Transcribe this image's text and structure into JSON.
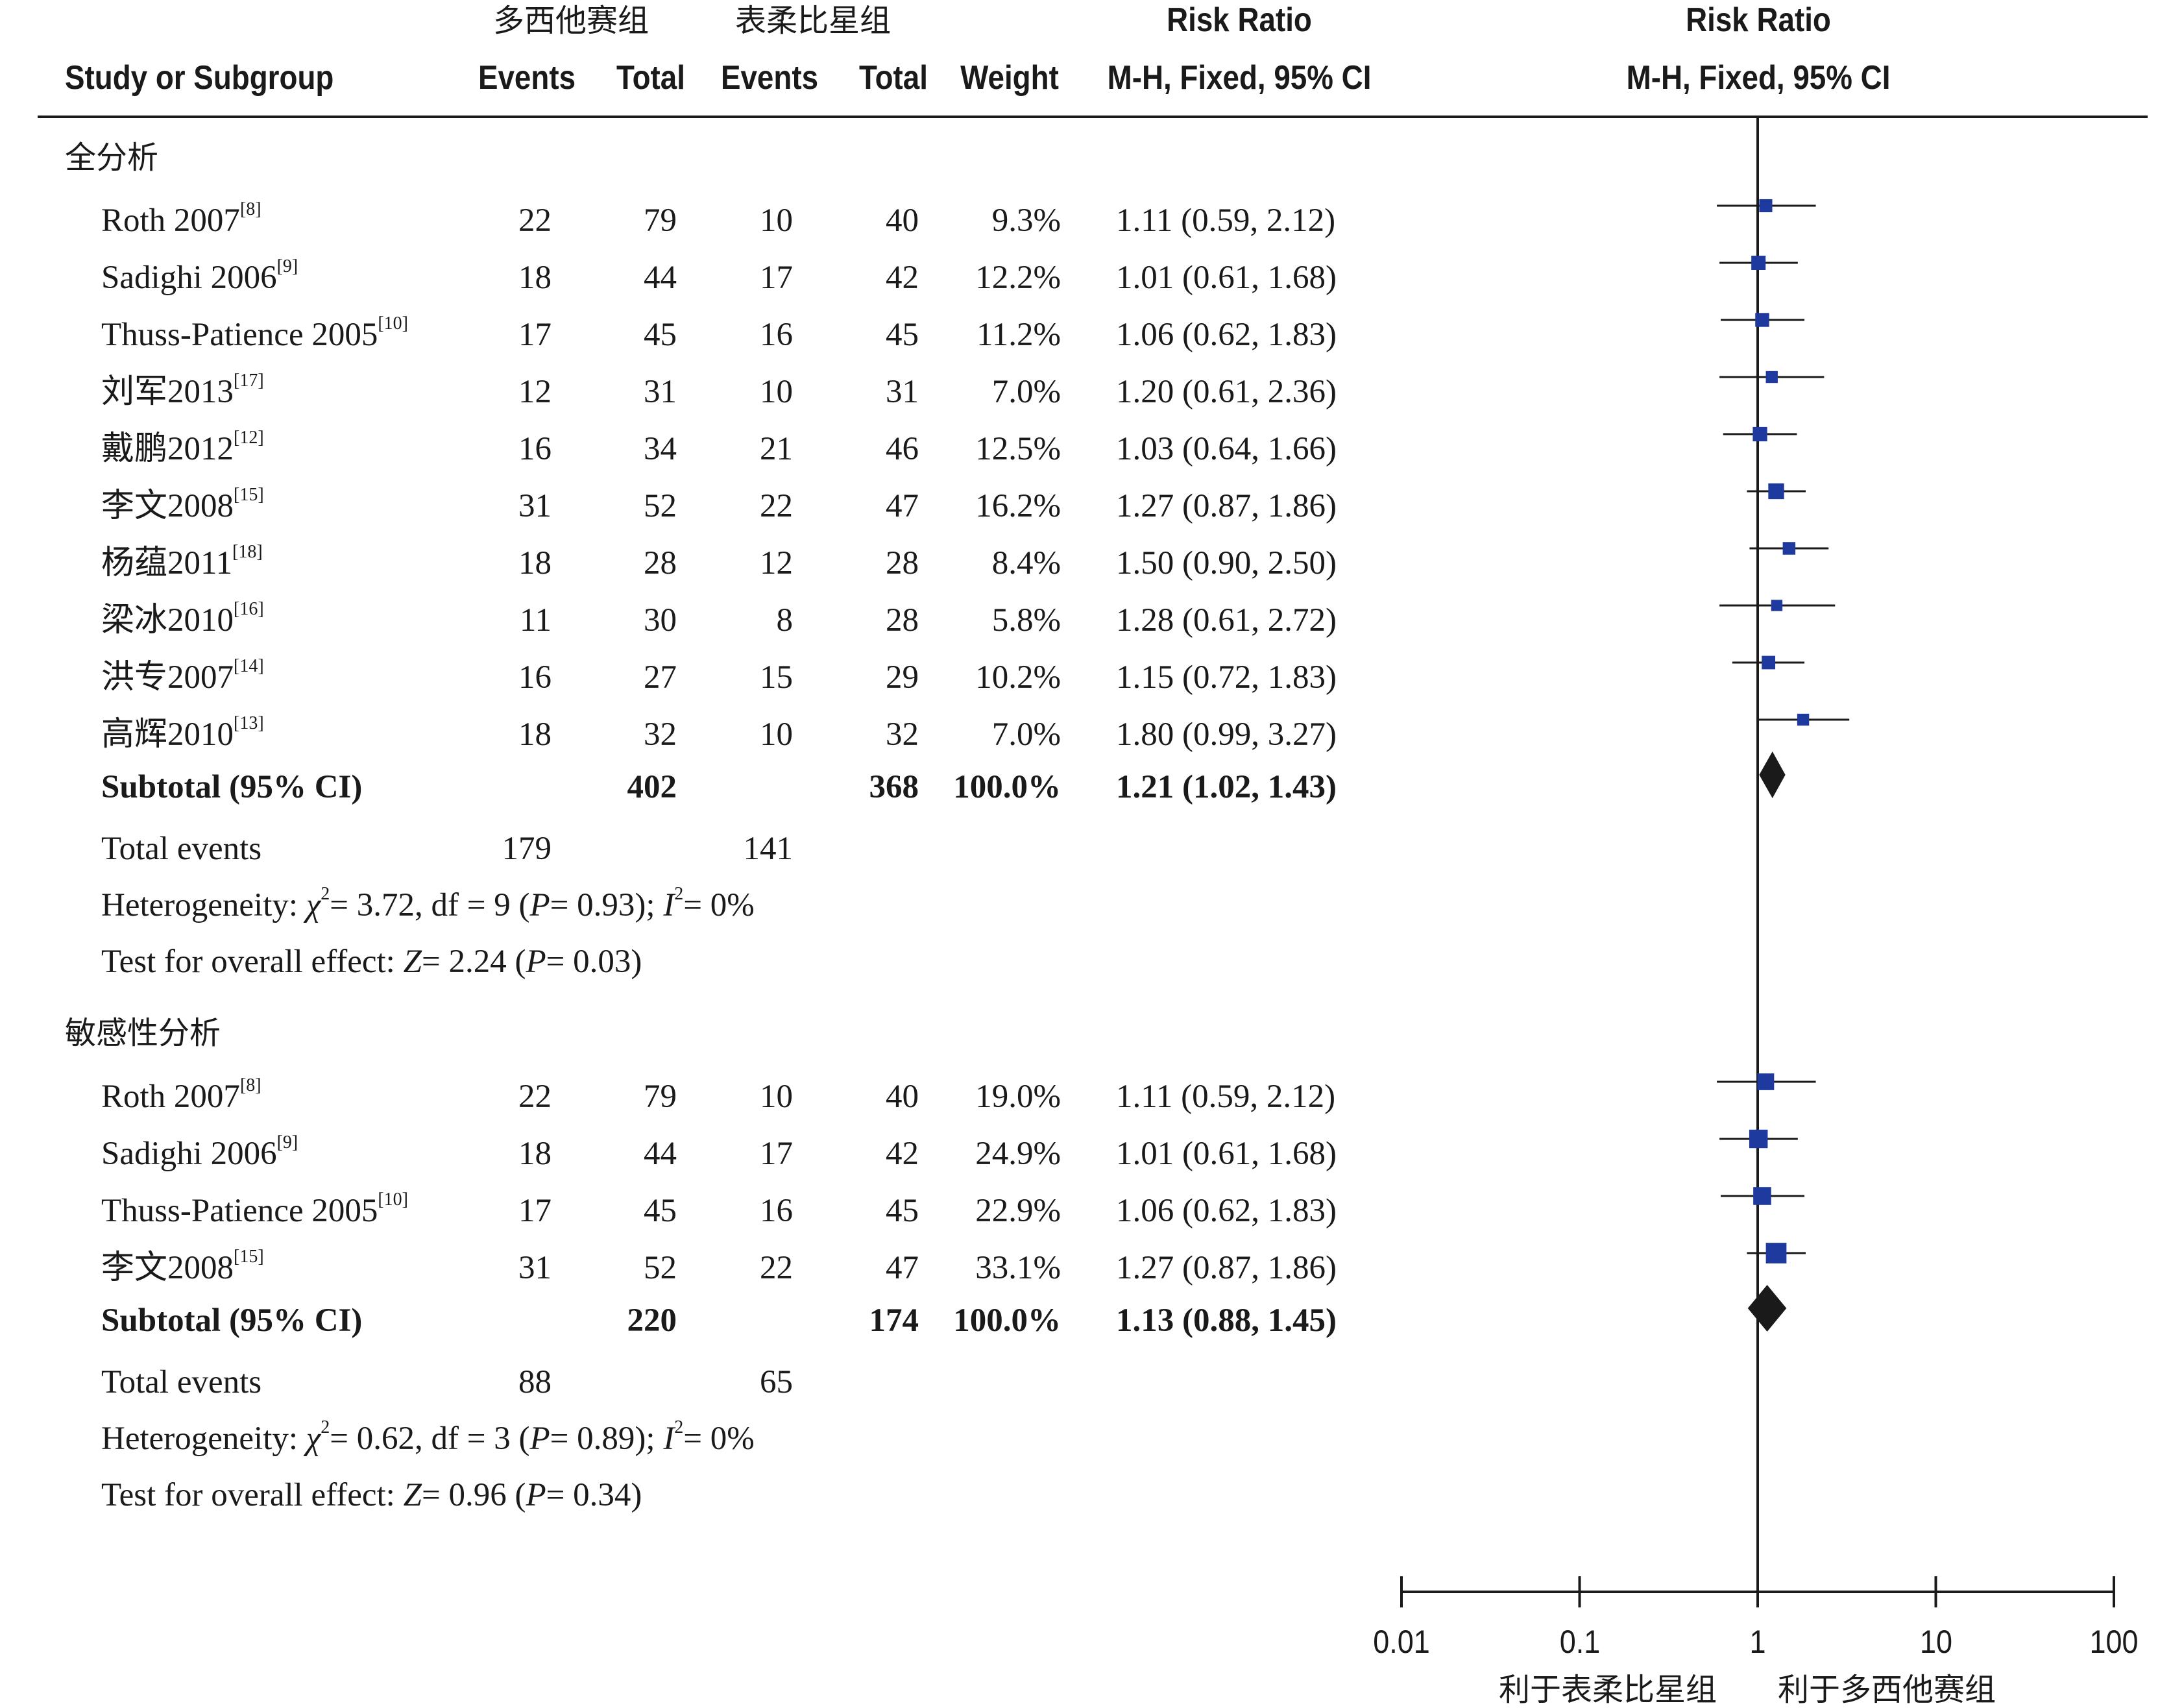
{
  "header": {
    "group_a": "多西他赛组",
    "group_b": "表柔比星组",
    "rr_title": "Risk Ratio",
    "rr_method": "M-H, Fixed, 95% CI",
    "plot_title": "Risk Ratio",
    "plot_method": "M-H, Fixed, 95% CI",
    "col_study": "Study or Subgroup",
    "col_events_a": "Events",
    "col_total_a": "Total",
    "col_events_b": "Events",
    "col_total_b": "Total",
    "col_weight": "Weight"
  },
  "groups": [
    {
      "title": "全分析",
      "studies": [
        {
          "name": "Roth 2007",
          "ref": "[8]",
          "ea": "22",
          "ta": "79",
          "eb": "10",
          "tb": "40",
          "weight": "9.3%",
          "rr": "1.11 (0.59, 2.12)"
        },
        {
          "name": "Sadighi 2006",
          "ref": "[9]",
          "ea": "18",
          "ta": "44",
          "eb": "17",
          "tb": "42",
          "weight": "12.2%",
          "rr": "1.01 (0.61, 1.68)"
        },
        {
          "name": "Thuss-Patience 2005",
          "ref": "[10]",
          "ea": "17",
          "ta": "45",
          "eb": "16",
          "tb": "45",
          "weight": "11.2%",
          "rr": "1.06 (0.62, 1.83)"
        },
        {
          "name": "刘军2013",
          "ref": "[17]",
          "ea": "12",
          "ta": "31",
          "eb": "10",
          "tb": "31",
          "weight": "7.0%",
          "rr": "1.20 (0.61, 2.36)"
        },
        {
          "name": "戴鹏2012",
          "ref": "[12]",
          "ea": "16",
          "ta": "34",
          "eb": "21",
          "tb": "46",
          "weight": "12.5%",
          "rr": "1.03 (0.64, 1.66)"
        },
        {
          "name": "李文2008",
          "ref": "[15]",
          "ea": "31",
          "ta": "52",
          "eb": "22",
          "tb": "47",
          "weight": "16.2%",
          "rr": "1.27 (0.87, 1.86)"
        },
        {
          "name": "杨蕴2011",
          "ref": "[18]",
          "ea": "18",
          "ta": "28",
          "eb": "12",
          "tb": "28",
          "weight": "8.4%",
          "rr": "1.50 (0.90, 2.50)"
        },
        {
          "name": "梁冰2010",
          "ref": "[16]",
          "ea": "11",
          "ta": "30",
          "eb": "8",
          "tb": "28",
          "weight": "5.8%",
          "rr": "1.28 (0.61, 2.72)"
        },
        {
          "name": "洪专2007",
          "ref": "[14]",
          "ea": "16",
          "ta": "27",
          "eb": "15",
          "tb": "29",
          "weight": "10.2%",
          "rr": "1.15 (0.72, 1.83)"
        },
        {
          "name": "高辉2010",
          "ref": "[13]",
          "ea": "18",
          "ta": "32",
          "eb": "10",
          "tb": "32",
          "weight": "7.0%",
          "rr": "1.80 (0.99, 3.27)"
        }
      ],
      "subtotal": {
        "label": "Subtotal (95% CI)",
        "ta": "402",
        "tb": "368",
        "weight": "100.0%",
        "rr": "1.21 (1.02, 1.43)"
      },
      "total_events": {
        "label": "Total events",
        "ea": "179",
        "eb": "141"
      },
      "heterogeneity": {
        "label": "Heterogeneity: ",
        "chi_sym": "χ",
        "chi_sup": "2",
        "chi_rest": "= 3.72, df = 9 (",
        "p_sym": "P",
        "p_rest": "= 0.93); ",
        "i_sym": "I",
        "i_sup": "2",
        "i_rest": "= 0%"
      },
      "overall": {
        "label": "Test for overall effect: ",
        "z_sym": "Z",
        "z_rest": "= 2.24 (",
        "p_sym": "P",
        "p_rest": "= 0.03)"
      }
    },
    {
      "title": "敏感性分析",
      "studies": [
        {
          "name": "Roth 2007",
          "ref": "[8]",
          "ea": "22",
          "ta": "79",
          "eb": "10",
          "tb": "40",
          "weight": "19.0%",
          "rr": "1.11 (0.59, 2.12)"
        },
        {
          "name": "Sadighi 2006",
          "ref": "[9]",
          "ea": "18",
          "ta": "44",
          "eb": "17",
          "tb": "42",
          "weight": "24.9%",
          "rr": "1.01 (0.61, 1.68)"
        },
        {
          "name": "Thuss-Patience 2005",
          "ref": "[10]",
          "ea": "17",
          "ta": "45",
          "eb": "16",
          "tb": "45",
          "weight": "22.9%",
          "rr": "1.06 (0.62, 1.83)"
        },
        {
          "name": "李文2008",
          "ref": "[15]",
          "ea": "31",
          "ta": "52",
          "eb": "22",
          "tb": "47",
          "weight": "33.1%",
          "rr": "1.27 (0.87, 1.86)"
        }
      ],
      "subtotal": {
        "label": "Subtotal (95% CI)",
        "ta": "220",
        "tb": "174",
        "weight": "100.0%",
        "rr": "1.13 (0.88, 1.45)"
      },
      "total_events": {
        "label": "Total events",
        "ea": "88",
        "eb": "65"
      },
      "heterogeneity": {
        "label": "Heterogeneity: ",
        "chi_sym": "χ",
        "chi_sup": "2",
        "chi_rest": "= 0.62, df = 3 (",
        "p_sym": "P",
        "p_rest": "= 0.89); ",
        "i_sym": "I",
        "i_sup": "2",
        "i_rest": "= 0%"
      },
      "overall": {
        "label": "Test for overall effect: ",
        "z_sym": "Z",
        "z_rest": "= 0.96 (",
        "p_sym": "P",
        "p_rest": "= 0.34)"
      }
    }
  ],
  "axis": {
    "ticks": [
      "0.01",
      "0.1",
      "1",
      "10",
      "100"
    ],
    "left_label": "利于表柔比星组",
    "right_label": "利于多西他赛组"
  },
  "chart_data": {
    "type": "forest",
    "scale": "log",
    "xlim": [
      0.01,
      100
    ],
    "reference_line": 1,
    "study_color": "#1f3a9e",
    "diamond_color": "#1a1a1a",
    "groups": [
      {
        "name": "全分析",
        "points": [
          {
            "study": "Roth 2007",
            "rr": 1.11,
            "lo": 0.59,
            "hi": 2.12,
            "weight": 9.3
          },
          {
            "study": "Sadighi 2006",
            "rr": 1.01,
            "lo": 0.61,
            "hi": 1.68,
            "weight": 12.2
          },
          {
            "study": "Thuss-Patience 2005",
            "rr": 1.06,
            "lo": 0.62,
            "hi": 1.83,
            "weight": 11.2
          },
          {
            "study": "刘军2013",
            "rr": 1.2,
            "lo": 0.61,
            "hi": 2.36,
            "weight": 7.0
          },
          {
            "study": "戴鹏2012",
            "rr": 1.03,
            "lo": 0.64,
            "hi": 1.66,
            "weight": 12.5
          },
          {
            "study": "李文2008",
            "rr": 1.27,
            "lo": 0.87,
            "hi": 1.86,
            "weight": 16.2
          },
          {
            "study": "杨蕴2011",
            "rr": 1.5,
            "lo": 0.9,
            "hi": 2.5,
            "weight": 8.4
          },
          {
            "study": "梁冰2010",
            "rr": 1.28,
            "lo": 0.61,
            "hi": 2.72,
            "weight": 5.8
          },
          {
            "study": "洪专2007",
            "rr": 1.15,
            "lo": 0.72,
            "hi": 1.83,
            "weight": 10.2
          },
          {
            "study": "高辉2010",
            "rr": 1.8,
            "lo": 0.99,
            "hi": 3.27,
            "weight": 7.0
          }
        ],
        "subtotal": {
          "rr": 1.21,
          "lo": 1.02,
          "hi": 1.43
        }
      },
      {
        "name": "敏感性分析",
        "points": [
          {
            "study": "Roth 2007",
            "rr": 1.11,
            "lo": 0.59,
            "hi": 2.12,
            "weight": 19.0
          },
          {
            "study": "Sadighi 2006",
            "rr": 1.01,
            "lo": 0.61,
            "hi": 1.68,
            "weight": 24.9
          },
          {
            "study": "Thuss-Patience 2005",
            "rr": 1.06,
            "lo": 0.62,
            "hi": 1.83,
            "weight": 22.9
          },
          {
            "study": "李文2008",
            "rr": 1.27,
            "lo": 0.87,
            "hi": 1.86,
            "weight": 33.1
          }
        ],
        "subtotal": {
          "rr": 1.13,
          "lo": 0.88,
          "hi": 1.45
        }
      }
    ]
  }
}
